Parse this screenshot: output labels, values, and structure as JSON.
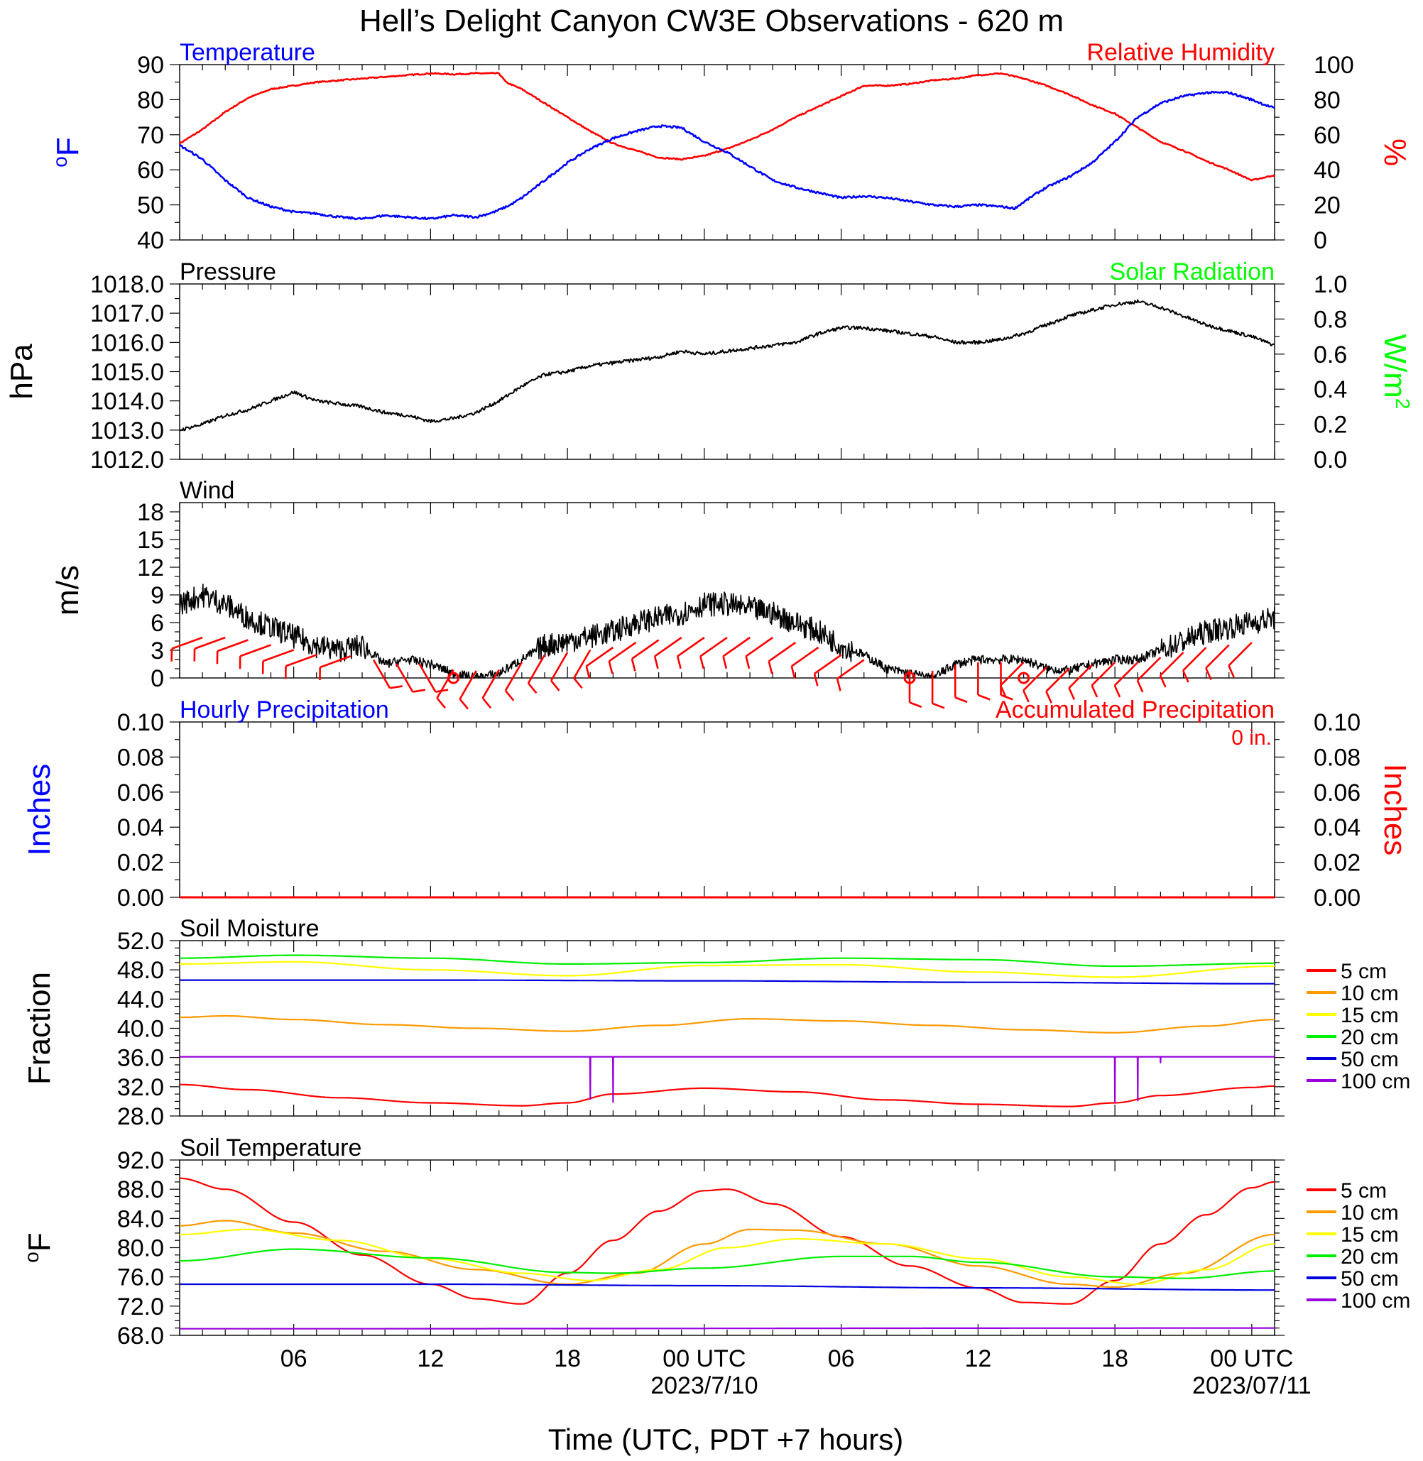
{
  "title": "Hell’s Delight Canyon CW3E Observations - 620 m",
  "x_axis": {
    "tick_labels": [
      "06",
      "12",
      "18",
      "00 UTC",
      "06",
      "12",
      "18",
      "00 UTC"
    ],
    "tick_hours": [
      6,
      12,
      18,
      24,
      30,
      36,
      42,
      48
    ],
    "date_labels": [
      "2023/7/10",
      "2023/07/11"
    ],
    "date_label_hours": [
      24,
      48
    ],
    "label": "Time (UTC, PDT +7 hours)",
    "range_hours": [
      1,
      49
    ]
  },
  "colors": {
    "temperature": "#0000ff",
    "humidity": "#ff0000",
    "pressure": "#000000",
    "solar": "#00ff00",
    "wind_speed": "#000000",
    "wind_barbs": "#ff0000",
    "precip_hourly": "#0000ff",
    "precip_accum": "#ff0000",
    "depths": [
      "#ff0000",
      "#ff9900",
      "#ffff00",
      "#00ee00",
      "#0000dd",
      "#9900dd"
    ]
  },
  "legend_depths": [
    "5 cm",
    "10 cm",
    "15 cm",
    "20 cm",
    "50 cm",
    "100 cm"
  ],
  "panels": {
    "temp_rh": {
      "left_title": "Temperature",
      "right_title": "Relative Humidity",
      "left_unit": "oF",
      "right_unit": "%",
      "left_ticks": [
        "90",
        "80",
        "70",
        "60",
        "50",
        "40"
      ],
      "right_ticks": [
        "100",
        "80",
        "60",
        "40",
        "20",
        "0"
      ]
    },
    "pressure": {
      "left_title": "Pressure",
      "right_title": "Solar Radiation",
      "left_unit": "hPa",
      "right_unit": "W/m2",
      "left_ticks": [
        "1018.0",
        "1017.0",
        "1016.0",
        "1015.0",
        "1014.0",
        "1013.0",
        "1012.0"
      ],
      "right_ticks": [
        "1.0",
        "0.8",
        "0.6",
        "0.4",
        "0.2",
        "0.0"
      ]
    },
    "wind": {
      "left_title": "Wind",
      "left_unit": "m/s",
      "left_ticks": [
        "18",
        "15",
        "12",
        "9",
        "6",
        "3",
        "0"
      ]
    },
    "precip": {
      "left_title": "Hourly Precipitation",
      "right_title": "Accumulated Precipitation",
      "accum_text": "0 in.",
      "left_unit": "Inches",
      "right_unit": "Inches",
      "left_ticks": [
        "0.10",
        "0.08",
        "0.06",
        "0.04",
        "0.02",
        "0.00"
      ],
      "right_ticks": [
        "0.10",
        "0.08",
        "0.06",
        "0.04",
        "0.02",
        "0.00"
      ]
    },
    "soil_moisture": {
      "left_title": "Soil Moisture",
      "left_unit": "Fraction",
      "left_ticks": [
        "52.0",
        "48.0",
        "44.0",
        "40.0",
        "36.0",
        "32.0",
        "28.0"
      ]
    },
    "soil_temp": {
      "left_title": "Soil Temperature",
      "left_unit": "oF",
      "left_ticks": [
        "92.0",
        "88.0",
        "84.0",
        "80.0",
        "76.0",
        "72.0",
        "68.0"
      ]
    }
  },
  "chart_data": [
    {
      "type": "line",
      "panel": "temp_rh",
      "x_units": "hours since 2023-07-09 00 UTC",
      "ylim": [
        40,
        90
      ],
      "ylim_right": [
        0,
        100
      ],
      "series": [
        {
          "name": "Temperature",
          "axis": "left",
          "x": [
            1,
            2,
            3,
            4,
            5,
            6,
            7,
            8,
            9,
            10,
            11,
            12,
            13,
            14,
            14.8,
            15.5,
            16,
            17,
            18,
            19,
            20,
            21,
            22,
            23,
            24,
            25,
            26,
            27,
            28,
            29,
            30,
            31,
            32,
            33,
            34,
            35,
            36,
            37,
            37.6,
            38.5,
            39,
            40,
            41,
            42,
            43,
            44,
            45,
            46,
            47,
            48,
            49
          ],
          "y": [
            67,
            63,
            57,
            52,
            49.5,
            48,
            47.5,
            46.5,
            46,
            47,
            46.5,
            46,
            47,
            46.5,
            48,
            50,
            52,
            57,
            62,
            66,
            69,
            71,
            72.5,
            72,
            68,
            65,
            61,
            57,
            55,
            53.5,
            52,
            52.5,
            52,
            51,
            50,
            49.5,
            50,
            49.5,
            49,
            53,
            55,
            58,
            62,
            68,
            75,
            79,
            81,
            82,
            82,
            80,
            77.5
          ]
        },
        {
          "name": "Relative Humidity",
          "axis": "right",
          "x": [
            1,
            2,
            3,
            4,
            5,
            6,
            7,
            8,
            9,
            10,
            11,
            12,
            13,
            14,
            15,
            15.3,
            16,
            17,
            18,
            19,
            20,
            21,
            22,
            23,
            24,
            25,
            26,
            27,
            28,
            29,
            30,
            31,
            32,
            33,
            34,
            35,
            36,
            37,
            38,
            39,
            40,
            41,
            42,
            43,
            44,
            45,
            46,
            47,
            48,
            49
          ],
          "y": [
            55,
            63,
            73,
            81,
            86,
            88,
            90,
            91,
            92,
            93,
            94,
            95,
            94.5,
            95,
            95,
            90,
            86,
            78,
            70,
            62,
            55,
            51,
            47,
            46,
            48,
            52,
            57,
            63,
            70,
            76,
            82,
            88,
            88,
            89,
            91,
            92,
            94,
            95,
            92,
            88,
            83,
            77,
            72,
            64,
            56,
            51,
            45,
            40,
            34,
            37
          ]
        }
      ]
    },
    {
      "type": "line",
      "panel": "pressure",
      "x_units": "hours since 2023-07-09 00 UTC",
      "ylim": [
        1012,
        1018
      ],
      "ylim_right": [
        0,
        1
      ],
      "series": [
        {
          "name": "Pressure",
          "axis": "left",
          "x": [
            1,
            2,
            3,
            4,
            5,
            6,
            7,
            8,
            9,
            10,
            11,
            12,
            13,
            14,
            15,
            16,
            17,
            18,
            19,
            20,
            21,
            22,
            23,
            24,
            25,
            26,
            27,
            28,
            29,
            30,
            31,
            32,
            33,
            34,
            35,
            36,
            37,
            38,
            39,
            40,
            41,
            42,
            43,
            44,
            45,
            46,
            47,
            48,
            49
          ],
          "y": [
            1013.0,
            1013.2,
            1013.5,
            1013.7,
            1014.0,
            1014.3,
            1014.0,
            1013.9,
            1013.8,
            1013.6,
            1013.5,
            1013.3,
            1013.4,
            1013.6,
            1014.0,
            1014.5,
            1014.9,
            1015.0,
            1015.2,
            1015.3,
            1015.4,
            1015.5,
            1015.7,
            1015.6,
            1015.7,
            1015.8,
            1015.9,
            1016.0,
            1016.3,
            1016.5,
            1016.5,
            1016.4,
            1016.3,
            1016.2,
            1016.0,
            1016.0,
            1016.1,
            1016.3,
            1016.6,
            1016.9,
            1017.1,
            1017.3,
            1017.4,
            1017.2,
            1016.9,
            1016.6,
            1016.4,
            1016.2,
            1015.9
          ]
        }
      ]
    },
    {
      "type": "line",
      "panel": "wind",
      "x_units": "hours since 2023-07-09 00 UTC",
      "ylim": [
        0,
        19
      ],
      "series": [
        {
          "name": "Wind Speed",
          "axis": "left",
          "x": [
            1,
            2,
            3,
            4,
            5,
            6,
            7,
            8,
            9,
            10,
            11,
            12,
            13,
            14,
            15,
            16,
            17,
            18,
            19,
            20,
            21,
            22,
            23,
            24,
            25,
            26,
            27,
            28,
            29,
            30,
            31,
            32,
            33,
            34,
            35,
            36,
            37,
            38,
            39,
            40,
            41,
            42,
            43,
            44,
            45,
            46,
            47,
            48,
            49
          ],
          "y": [
            8,
            9,
            8,
            6.5,
            5.5,
            4.5,
            3.5,
            3,
            3.5,
            1.5,
            2,
            1.5,
            0.5,
            0,
            0.5,
            2,
            3.5,
            4,
            4.5,
            5,
            6,
            6.5,
            7,
            8,
            8,
            7.5,
            7,
            6,
            5,
            3.5,
            2.5,
            1,
            0.5,
            0,
            1.5,
            2,
            2,
            2,
            1,
            0.8,
            1.5,
            2,
            2,
            3,
            4,
            5,
            5.5,
            6,
            6.5
          ]
        }
      ],
      "barb_hours": [
        2,
        3,
        4,
        5,
        6,
        7,
        8.5,
        9.5,
        10.5,
        11.5,
        13,
        14,
        15,
        16,
        17,
        18,
        19,
        20,
        21,
        22,
        23,
        24,
        25,
        26,
        27,
        28,
        29,
        30,
        31,
        33,
        34,
        35,
        36,
        37,
        38,
        39,
        40,
        41,
        42,
        43,
        44,
        45,
        46,
        47,
        48
      ],
      "calm_hours": [
        13,
        33,
        38
      ]
    },
    {
      "type": "line",
      "panel": "precip",
      "x_units": "hours since 2023-07-09 00 UTC",
      "ylim": [
        0,
        0.1
      ],
      "series": [
        {
          "name": "Hourly Precipitation",
          "axis": "left",
          "x": [
            1,
            49
          ],
          "y": [
            0,
            0
          ]
        },
        {
          "name": "Accumulated Precipitation",
          "axis": "right",
          "x": [
            1,
            49
          ],
          "y": [
            0,
            0
          ]
        }
      ]
    },
    {
      "type": "line",
      "panel": "soil_moisture",
      "x_units": "hours since 2023-07-09 00 UTC",
      "ylim": [
        28,
        52
      ],
      "series": [
        {
          "name": "5 cm",
          "x": [
            1,
            4,
            8,
            12,
            16,
            18,
            20,
            24,
            28,
            32,
            36,
            40,
            42,
            44,
            48,
            49
          ],
          "y": [
            32.3,
            31.6,
            30.5,
            29.8,
            29.4,
            29.8,
            31.0,
            31.8,
            31.3,
            30.2,
            29.6,
            29.3,
            29.8,
            30.8,
            31.9,
            32.1
          ]
        },
        {
          "name": "10 cm",
          "x": [
            1,
            3,
            6,
            10,
            14,
            18,
            22,
            26,
            30,
            34,
            38,
            42,
            46,
            49
          ],
          "y": [
            41.5,
            41.7,
            41.2,
            40.5,
            40.0,
            39.6,
            40.4,
            41.3,
            41.0,
            40.4,
            39.8,
            39.4,
            40.3,
            41.2
          ]
        },
        {
          "name": "15 cm",
          "x": [
            1,
            6,
            12,
            18,
            24,
            30,
            36,
            42,
            49
          ],
          "y": [
            48.8,
            49.1,
            48.0,
            47.2,
            48.6,
            48.7,
            47.7,
            47.0,
            48.5
          ]
        },
        {
          "name": "20 cm",
          "x": [
            1,
            6,
            12,
            18,
            24,
            30,
            36,
            42,
            49
          ],
          "y": [
            49.6,
            50.0,
            49.6,
            48.8,
            49.0,
            49.6,
            49.4,
            48.5,
            48.9
          ]
        },
        {
          "name": "50 cm",
          "x": [
            1,
            12,
            24,
            36,
            49
          ],
          "y": [
            46.6,
            46.6,
            46.5,
            46.3,
            46.1
          ]
        },
        {
          "name": "100 cm",
          "x": [
            1,
            18.99,
            19,
            19.01,
            19.99,
            20,
            20.01,
            41.99,
            42,
            42.01,
            42.99,
            43,
            43.01,
            43.99,
            44,
            44.01,
            49
          ],
          "y": [
            36.1,
            36.1,
            30.3,
            36.1,
            36.1,
            29.9,
            36.1,
            36.1,
            29.9,
            36.1,
            36.1,
            30.1,
            36.1,
            36.1,
            35.3,
            36.1,
            36.1
          ]
        }
      ]
    },
    {
      "type": "line",
      "panel": "soil_temp",
      "x_units": "hours since 2023-07-09 00 UTC",
      "ylim": [
        68,
        92
      ],
      "series": [
        {
          "name": "5 cm",
          "x": [
            1,
            3,
            6,
            9,
            12,
            14,
            16,
            18,
            20,
            22,
            24,
            25,
            27,
            30,
            33,
            36,
            38,
            40,
            42,
            44,
            46,
            48,
            49
          ],
          "y": [
            89.5,
            88.0,
            83.5,
            79.0,
            75.0,
            73.0,
            72.3,
            76.5,
            81.0,
            85.0,
            87.8,
            88.0,
            86.0,
            81.5,
            77.5,
            74.5,
            72.5,
            72.3,
            75.5,
            80.5,
            84.5,
            88.2,
            89.0
          ]
        },
        {
          "name": "10 cm",
          "x": [
            1,
            3,
            6,
            10,
            14,
            18,
            21,
            24,
            26,
            28,
            32,
            36,
            40,
            42,
            45,
            49
          ],
          "y": [
            83.0,
            83.7,
            82.0,
            79.5,
            77.0,
            75.0,
            76.5,
            80.5,
            82.5,
            82.4,
            80.5,
            77.5,
            75.0,
            74.6,
            76.5,
            81.8
          ]
        },
        {
          "name": "15 cm",
          "x": [
            1,
            4,
            8,
            12,
            16,
            19,
            22,
            25,
            28,
            32,
            36,
            40,
            43,
            46,
            49
          ],
          "y": [
            81.8,
            82.5,
            81.0,
            78.5,
            76.5,
            75.5,
            77.0,
            80.0,
            81.2,
            80.5,
            78.5,
            76.0,
            75.0,
            77.0,
            80.5
          ]
        },
        {
          "name": "20 cm",
          "x": [
            1,
            6,
            12,
            18,
            20,
            24,
            30,
            33,
            36,
            42,
            45,
            49
          ],
          "y": [
            78.2,
            79.8,
            78.6,
            76.6,
            76.5,
            77.2,
            78.8,
            78.8,
            78.0,
            76.0,
            75.8,
            76.8
          ]
        },
        {
          "name": "50 cm",
          "x": [
            1,
            12,
            24,
            36,
            49
          ],
          "y": [
            75.0,
            75.0,
            74.8,
            74.5,
            74.2
          ]
        },
        {
          "name": "100 cm",
          "x": [
            1,
            49
          ],
          "y": [
            68.9,
            69.0
          ]
        }
      ]
    }
  ]
}
